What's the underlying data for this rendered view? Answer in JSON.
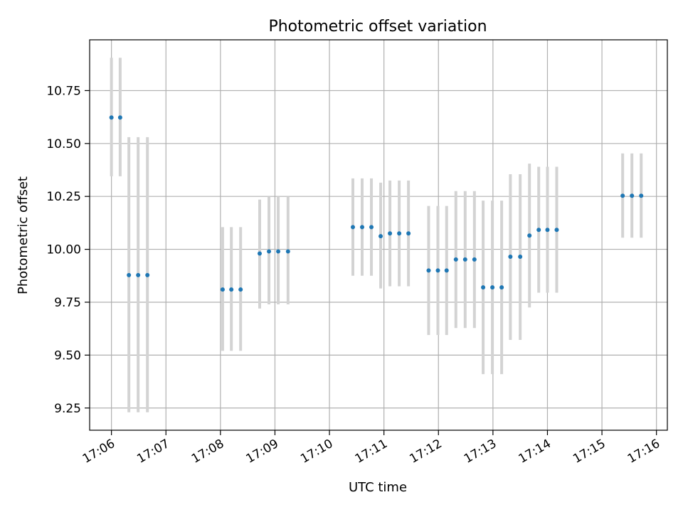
{
  "chart_data": {
    "type": "scatter",
    "title": "Photometric offset variation",
    "xlabel": "UTC time",
    "ylabel": "Photometric offset",
    "x_unit": "minutes of 17h",
    "xlim": [
      5.6,
      16.2
    ],
    "ylim": [
      9.145,
      10.99
    ],
    "x_ticks": [
      6,
      7,
      8,
      9,
      10,
      11,
      12,
      13,
      14,
      15,
      16
    ],
    "x_tick_labels": [
      "17:06",
      "17:07",
      "17:08",
      "17:09",
      "17:10",
      "17:11",
      "17:12",
      "17:13",
      "17:14",
      "17:15",
      "17:16"
    ],
    "y_ticks": [
      9.25,
      9.5,
      9.75,
      10.0,
      10.25,
      10.5,
      10.75
    ],
    "y_tick_labels": [
      "9.25",
      "9.50",
      "9.75",
      "10.00",
      "10.25",
      "10.50",
      "10.75"
    ],
    "grid": true,
    "point_color": "#1f77b4",
    "errorbar_color": "#d3d3d3",
    "points": [
      {
        "x": 6.0,
        "y": 10.623,
        "lo": 10.345,
        "hi": 10.905
      },
      {
        "x": 6.16,
        "y": 10.623,
        "lo": 10.345,
        "hi": 10.905
      },
      {
        "x": 6.32,
        "y": 9.878,
        "lo": 9.23,
        "hi": 10.53
      },
      {
        "x": 6.49,
        "y": 9.878,
        "lo": 9.23,
        "hi": 10.53
      },
      {
        "x": 6.66,
        "y": 9.878,
        "lo": 9.23,
        "hi": 10.53
      },
      {
        "x": 8.04,
        "y": 9.81,
        "lo": 9.52,
        "hi": 10.105
      },
      {
        "x": 8.2,
        "y": 9.81,
        "lo": 9.52,
        "hi": 10.105
      },
      {
        "x": 8.37,
        "y": 9.81,
        "lo": 9.52,
        "hi": 10.105
      },
      {
        "x": 8.72,
        "y": 9.98,
        "lo": 9.72,
        "hi": 10.235
      },
      {
        "x": 8.89,
        "y": 9.99,
        "lo": 9.74,
        "hi": 10.25
      },
      {
        "x": 9.06,
        "y": 9.99,
        "lo": 9.74,
        "hi": 10.25
      },
      {
        "x": 9.24,
        "y": 9.99,
        "lo": 9.74,
        "hi": 10.25
      },
      {
        "x": 10.43,
        "y": 10.105,
        "lo": 9.875,
        "hi": 10.335
      },
      {
        "x": 10.6,
        "y": 10.105,
        "lo": 9.875,
        "hi": 10.335
      },
      {
        "x": 10.77,
        "y": 10.105,
        "lo": 9.875,
        "hi": 10.335
      },
      {
        "x": 10.94,
        "y": 10.062,
        "lo": 9.815,
        "hi": 10.315
      },
      {
        "x": 11.11,
        "y": 10.075,
        "lo": 9.825,
        "hi": 10.325
      },
      {
        "x": 11.28,
        "y": 10.075,
        "lo": 9.825,
        "hi": 10.325
      },
      {
        "x": 11.45,
        "y": 10.075,
        "lo": 9.825,
        "hi": 10.325
      },
      {
        "x": 11.82,
        "y": 9.9,
        "lo": 9.595,
        "hi": 10.205
      },
      {
        "x": 11.99,
        "y": 9.9,
        "lo": 9.595,
        "hi": 10.205
      },
      {
        "x": 12.15,
        "y": 9.9,
        "lo": 9.595,
        "hi": 10.205
      },
      {
        "x": 12.32,
        "y": 9.952,
        "lo": 9.628,
        "hi": 10.275
      },
      {
        "x": 12.49,
        "y": 9.952,
        "lo": 9.628,
        "hi": 10.275
      },
      {
        "x": 12.66,
        "y": 9.952,
        "lo": 9.628,
        "hi": 10.275
      },
      {
        "x": 12.82,
        "y": 9.82,
        "lo": 9.41,
        "hi": 10.23
      },
      {
        "x": 12.99,
        "y": 9.82,
        "lo": 9.41,
        "hi": 10.23
      },
      {
        "x": 13.16,
        "y": 9.82,
        "lo": 9.41,
        "hi": 10.23
      },
      {
        "x": 13.32,
        "y": 9.965,
        "lo": 9.572,
        "hi": 10.355
      },
      {
        "x": 13.5,
        "y": 9.965,
        "lo": 9.572,
        "hi": 10.355
      },
      {
        "x": 13.67,
        "y": 10.065,
        "lo": 9.725,
        "hi": 10.405
      },
      {
        "x": 13.84,
        "y": 10.092,
        "lo": 9.795,
        "hi": 10.39
      },
      {
        "x": 14.0,
        "y": 10.092,
        "lo": 9.795,
        "hi": 10.39
      },
      {
        "x": 14.17,
        "y": 10.092,
        "lo": 9.795,
        "hi": 10.39
      },
      {
        "x": 15.38,
        "y": 10.253,
        "lo": 10.055,
        "hi": 10.453
      },
      {
        "x": 15.55,
        "y": 10.253,
        "lo": 10.055,
        "hi": 10.453
      },
      {
        "x": 15.72,
        "y": 10.253,
        "lo": 10.055,
        "hi": 10.453
      }
    ]
  }
}
